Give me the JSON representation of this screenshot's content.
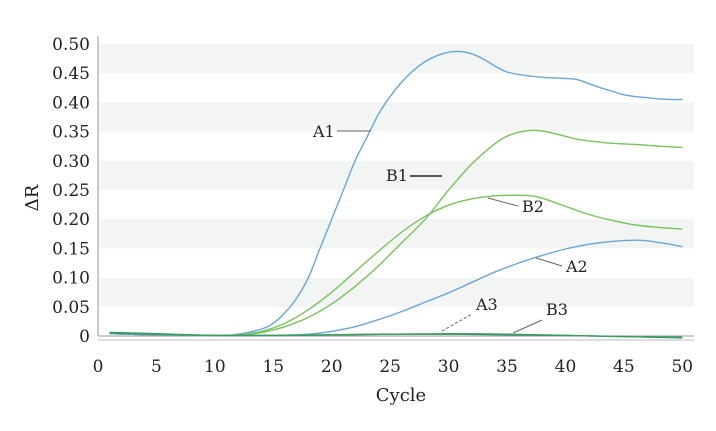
{
  "chart_data": {
    "type": "line",
    "title": "",
    "xlabel": "Cycle",
    "ylabel": "ΔR",
    "xlim": [
      0,
      51
    ],
    "ylim": [
      0,
      0.5
    ],
    "x_ticks": [
      "0",
      "5",
      "10",
      "15",
      "20",
      "25",
      "30",
      "35",
      "40",
      "45",
      "50"
    ],
    "y_ticks": [
      "0",
      "0.05",
      "0.10",
      "0.15",
      "0.20",
      "0.25",
      "0.30",
      "0.35",
      "0.40",
      "0.45",
      "0.50"
    ],
    "grid": "alternating horizontal bands",
    "legend": "none",
    "colors": {
      "A": "#6aa6d8",
      "B": "#79c25c",
      "flat": "#2e8b7a",
      "band": "#f2f5f4",
      "axis": "#999999"
    },
    "series": [
      {
        "name": "A1",
        "color": "#6aa6d8",
        "x": [
          1,
          5,
          10,
          12,
          14,
          15,
          16,
          17,
          18,
          19,
          20,
          21,
          22,
          23,
          24,
          25,
          26,
          27,
          28,
          29,
          30,
          31,
          32,
          33,
          34,
          35,
          36,
          37,
          38,
          39,
          40,
          41,
          42,
          43,
          44,
          45,
          46,
          47,
          48,
          49,
          50
        ],
        "y": [
          0.004,
          0.002,
          0.001,
          0.003,
          0.012,
          0.022,
          0.04,
          0.065,
          0.1,
          0.15,
          0.2,
          0.25,
          0.3,
          0.34,
          0.38,
          0.41,
          0.435,
          0.455,
          0.47,
          0.48,
          0.486,
          0.487,
          0.483,
          0.474,
          0.462,
          0.452,
          0.448,
          0.445,
          0.443,
          0.442,
          0.441,
          0.439,
          0.432,
          0.425,
          0.419,
          0.413,
          0.41,
          0.408,
          0.406,
          0.405,
          0.405
        ]
      },
      {
        "name": "B1",
        "color": "#79c25c",
        "x": [
          1,
          5,
          10,
          12,
          14,
          16,
          18,
          20,
          22,
          24,
          26,
          28,
          30,
          32,
          34,
          35,
          36,
          37,
          38,
          39,
          40,
          41,
          42,
          44,
          46,
          48,
          50
        ],
        "y": [
          0.004,
          0.002,
          0.001,
          0.002,
          0.006,
          0.016,
          0.032,
          0.055,
          0.085,
          0.12,
          0.16,
          0.2,
          0.25,
          0.295,
          0.33,
          0.342,
          0.349,
          0.352,
          0.351,
          0.347,
          0.342,
          0.337,
          0.334,
          0.33,
          0.328,
          0.325,
          0.323
        ]
      },
      {
        "name": "B2",
        "color": "#79c25c",
        "x": [
          1,
          5,
          10,
          12,
          14,
          16,
          18,
          20,
          22,
          24,
          26,
          28,
          30,
          32,
          34,
          36,
          37,
          38,
          40,
          42,
          44,
          46,
          48,
          50
        ],
        "y": [
          0.004,
          0.002,
          0.001,
          0.002,
          0.008,
          0.022,
          0.045,
          0.075,
          0.11,
          0.145,
          0.178,
          0.205,
          0.224,
          0.235,
          0.24,
          0.241,
          0.24,
          0.236,
          0.222,
          0.208,
          0.198,
          0.19,
          0.186,
          0.183
        ]
      },
      {
        "name": "A2",
        "color": "#6aa6d8",
        "x": [
          1,
          5,
          10,
          15,
          18,
          20,
          22,
          24,
          26,
          28,
          30,
          32,
          34,
          36,
          38,
          40,
          42,
          44,
          46,
          47,
          48,
          49,
          50
        ],
        "y": [
          0.004,
          0.002,
          0.001,
          0.001,
          0.003,
          0.008,
          0.016,
          0.028,
          0.042,
          0.058,
          0.074,
          0.092,
          0.11,
          0.125,
          0.138,
          0.149,
          0.157,
          0.162,
          0.164,
          0.163,
          0.16,
          0.157,
          0.153
        ]
      },
      {
        "name": "A3",
        "color": "#2e8b7a",
        "x": [
          1,
          5,
          10,
          15,
          20,
          25,
          30,
          35,
          40,
          45,
          50
        ],
        "y": [
          0.006,
          0.004,
          0.001,
          0.001,
          0.002,
          0.003,
          0.003,
          0.002,
          0.001,
          -0.001,
          -0.003
        ]
      },
      {
        "name": "B3",
        "color": "#3c9d5a",
        "x": [
          1,
          5,
          10,
          15,
          20,
          25,
          30,
          35,
          40,
          45,
          50
        ],
        "y": [
          0.005,
          0.003,
          0.001,
          0.001,
          0.002,
          0.003,
          0.004,
          0.003,
          0.001,
          -0.001,
          -0.002
        ]
      }
    ],
    "annotations": [
      {
        "text": "A1",
        "x": 25,
        "y": 0.35,
        "style": "line"
      },
      {
        "text": "B1",
        "x": 30.5,
        "y": 0.276,
        "style": "line"
      },
      {
        "text": "B2",
        "x": 35,
        "y": 0.232,
        "style": "line"
      },
      {
        "text": "A2",
        "x": 37,
        "y": 0.13,
        "style": "line"
      },
      {
        "text": "A3",
        "x": 30,
        "y": 0.006,
        "style": "dashed"
      },
      {
        "text": "B3",
        "x": 37,
        "y": 0.004,
        "style": "line"
      }
    ]
  }
}
